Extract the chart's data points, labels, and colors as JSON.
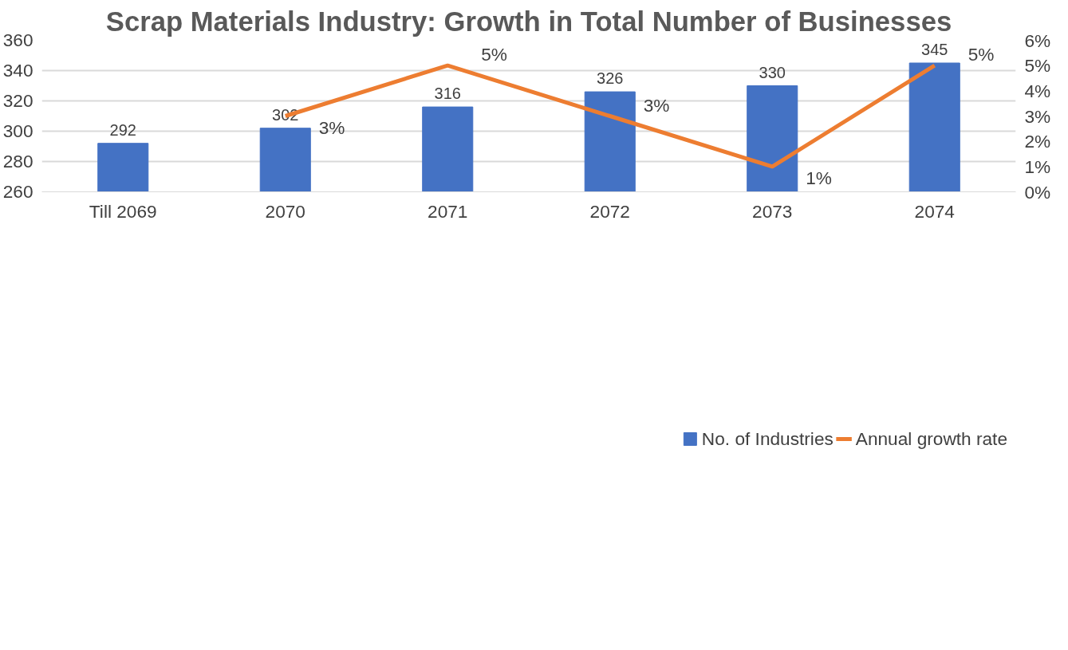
{
  "chart_data": {
    "type": "bar",
    "title": "Scrap Materials Industry: Growth in Total Number of Businesses",
    "categories": [
      "Till 2069",
      "2070",
      "2071",
      "2072",
      "2073",
      "2074"
    ],
    "series": [
      {
        "name": "No. of Industries",
        "color": "#4472c4",
        "values": [
          292,
          302,
          316,
          326,
          330,
          345
        ],
        "value_labels": [
          "292",
          "302",
          "316",
          "326",
          "330",
          "345"
        ]
      },
      {
        "name": "Annual growth rate",
        "type": "line",
        "axis": "y2",
        "color": "#ed7d31",
        "values": [
          null,
          3,
          5,
          3,
          1,
          5
        ],
        "value_labels": [
          null,
          "3%",
          "5%",
          "3%",
          "1%",
          "5%"
        ]
      }
    ],
    "ylim": [
      260,
      360
    ],
    "yticks": [
      260,
      280,
      300,
      320,
      340,
      360
    ],
    "y2lim": [
      0,
      6
    ],
    "y2ticks": [
      {
        "value": 0,
        "label": "0%"
      },
      {
        "value": 1,
        "label": "1%"
      },
      {
        "value": 2,
        "label": "2%"
      },
      {
        "value": 3,
        "label": "3%"
      },
      {
        "value": 4,
        "label": "4%"
      },
      {
        "value": 5,
        "label": "5%"
      },
      {
        "value": 6,
        "label": "6%"
      }
    ],
    "grid": "y",
    "legend": "bottom"
  }
}
